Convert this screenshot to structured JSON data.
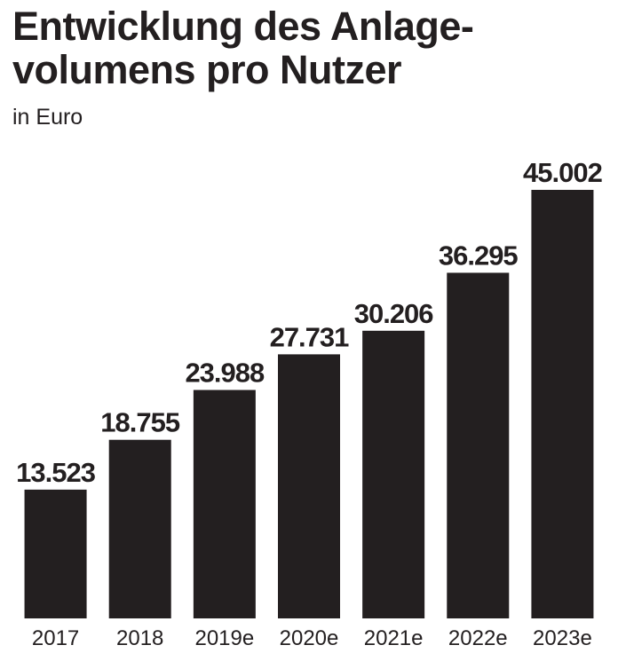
{
  "chart_data": {
    "type": "bar",
    "title": [
      "Entwicklung des Anlage-",
      "volumens pro Nutzer"
    ],
    "subtitle": "in Euro",
    "categories": [
      "2017",
      "2018",
      "2019e",
      "2020e",
      "2021e",
      "2022e",
      "2023e"
    ],
    "values": [
      13523,
      18755,
      23988,
      27731,
      30206,
      36295,
      45002
    ],
    "value_labels": [
      "13.523",
      "18.755",
      "23.988",
      "27.731",
      "30.206",
      "36.295",
      "45.002"
    ],
    "color": "#231f20",
    "ylim": [
      0,
      45002
    ]
  }
}
